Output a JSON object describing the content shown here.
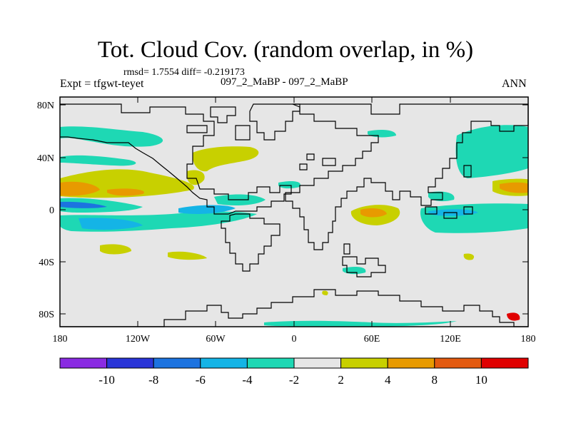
{
  "plot": {
    "title": "Tot. Cloud Cov. (random overlap, in %)",
    "stats": "rmsd= 1.7554 diff= -0.219173",
    "expt": "Expt = tfgwt-teyet",
    "case": "097_2_MaBP - 097_2_MaBP",
    "season": "ANN"
  },
  "axes": {
    "lat_labels": [
      "80N",
      "40N",
      "0",
      "40S",
      "80S"
    ],
    "lon_labels": [
      "180",
      "120W",
      "60W",
      "0",
      "60E",
      "120E",
      "180"
    ]
  },
  "colorbar": {
    "labels": [
      "-10",
      "-8",
      "-6",
      "-4",
      "-2",
      "2",
      "4",
      "8",
      "10"
    ],
    "colors": [
      "#8a2be2",
      "#2a35d8",
      "#1c73e0",
      "#14b4e6",
      "#1ed8b4",
      "#e6e6e6",
      "#c8d000",
      "#e89a00",
      "#e35a10",
      "#e00000"
    ]
  },
  "colors": {
    "land_outline": "#000000",
    "background_field": "#e6e6e6"
  }
}
